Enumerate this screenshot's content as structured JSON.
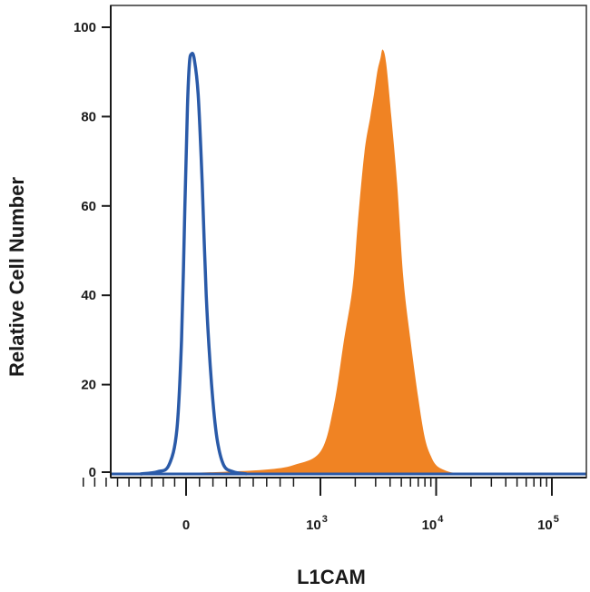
{
  "chart_data": {
    "type": "area",
    "xlabel": "L1CAM",
    "ylabel": "Relative Cell Number",
    "ylim": [
      0,
      100
    ],
    "y_ticks": [
      "0",
      "20",
      "40",
      "60",
      "80",
      "100"
    ],
    "x_scale": "biexponential",
    "x_ticks": [
      {
        "base": "0",
        "exp": ""
      },
      {
        "base": "10",
        "exp": "3"
      },
      {
        "base": "10",
        "exp": "4"
      },
      {
        "base": "10",
        "exp": "5"
      }
    ],
    "grid": false,
    "series": [
      {
        "style": "outline",
        "color": "#2a5aa8",
        "points": [
          [
            -400,
            0
          ],
          [
            -250,
            0.5
          ],
          [
            -150,
            2
          ],
          [
            -80,
            10
          ],
          [
            -40,
            30
          ],
          [
            -10,
            60
          ],
          [
            10,
            82
          ],
          [
            25,
            92
          ],
          [
            40,
            94
          ],
          [
            60,
            93
          ],
          [
            90,
            85
          ],
          [
            120,
            65
          ],
          [
            150,
            40
          ],
          [
            190,
            20
          ],
          [
            230,
            8
          ],
          [
            280,
            2
          ],
          [
            350,
            0.5
          ],
          [
            450,
            0
          ]
        ]
      },
      {
        "style": "filled",
        "color": "#f08323",
        "points": [
          [
            -200,
            0
          ],
          [
            100,
            0.3
          ],
          [
            300,
            0.5
          ],
          [
            600,
            1
          ],
          [
            800,
            2
          ],
          [
            1000,
            5
          ],
          [
            1300,
            15
          ],
          [
            1600,
            30
          ],
          [
            1900,
            42
          ],
          [
            2100,
            56
          ],
          [
            2400,
            72
          ],
          [
            2700,
            80
          ],
          [
            2900,
            85
          ],
          [
            3100,
            90
          ],
          [
            3300,
            93
          ],
          [
            3450,
            95
          ],
          [
            3700,
            92
          ],
          [
            4100,
            80
          ],
          [
            4600,
            65
          ],
          [
            5200,
            44
          ],
          [
            6000,
            30
          ],
          [
            7000,
            17
          ],
          [
            8000,
            8
          ],
          [
            9000,
            4
          ],
          [
            10000,
            2
          ],
          [
            11500,
            1
          ],
          [
            14000,
            0.3
          ],
          [
            20000,
            0
          ]
        ]
      }
    ]
  }
}
